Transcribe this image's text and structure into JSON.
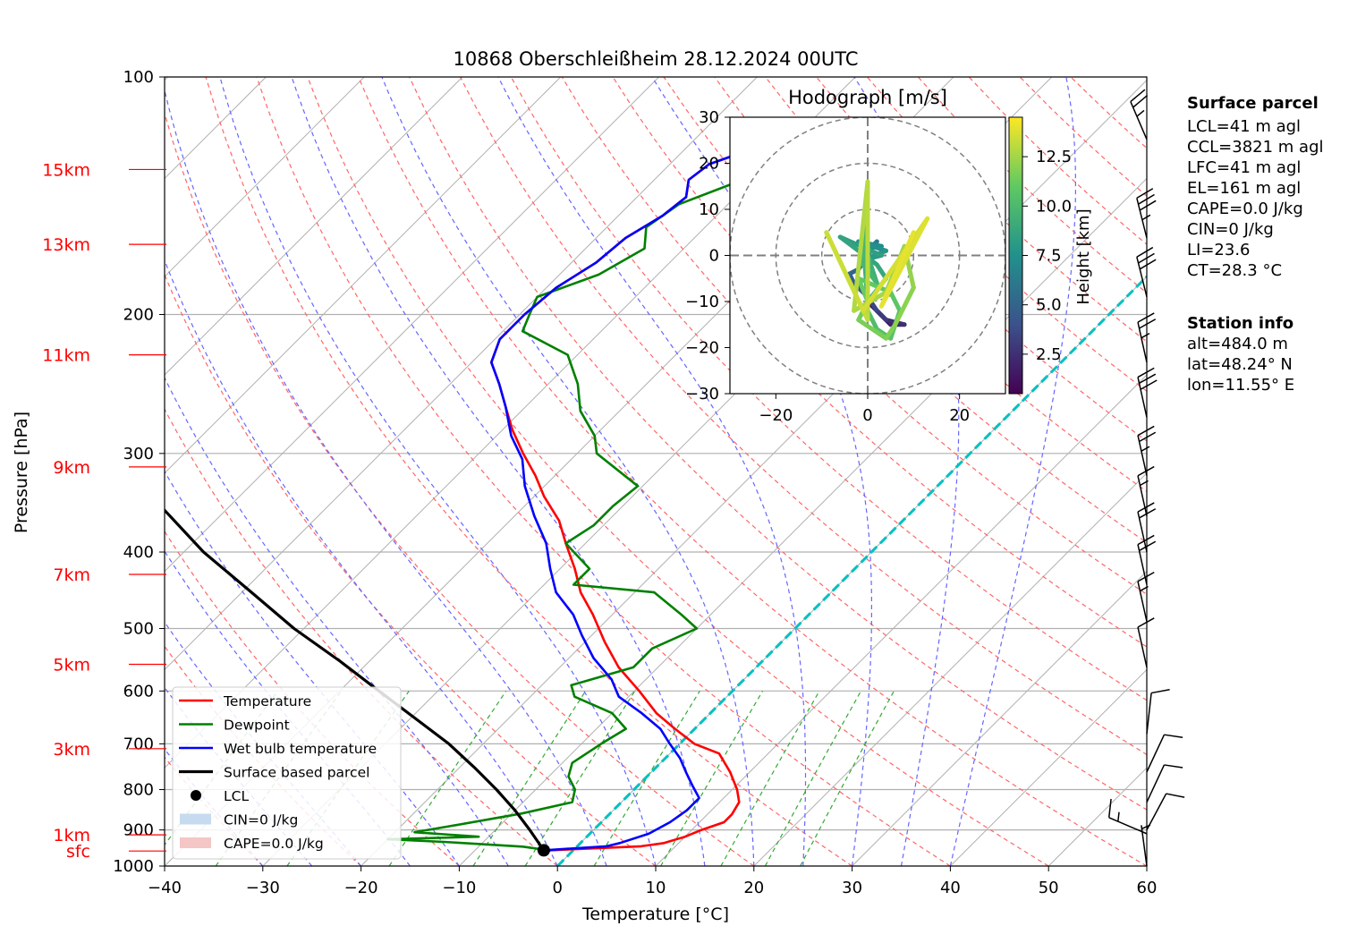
{
  "title": "10868 Oberschleißheim 28.12.2024 00UTC",
  "colors": {
    "temperature": "#ff0000",
    "dewpoint": "#008000",
    "wetbulb": "#0000ff",
    "parcel": "#000000",
    "altitude_labels": "#ff0000",
    "dry_adiabats": "#ff6666",
    "moist_adiabats": "#6666ff",
    "mixing_ratio": "#33aa33",
    "freezing_isotherm": "#00c0c0",
    "cin_fill": "#c6dbef",
    "cape_fill": "#f4c6c6"
  },
  "chart_data": {
    "type": "skew-T log-p",
    "xlabel": "Temperature [°C]",
    "ylabel": "Pressure [hPa]",
    "xlim": [
      -40,
      60
    ],
    "ylim": [
      1000,
      100
    ],
    "x_scale": "linear (skewed isotherms)",
    "y_scale": "log",
    "grid": true,
    "x_ticks": [
      "−40",
      "−30",
      "−20",
      "−10",
      "0",
      "10",
      "20",
      "30",
      "40",
      "50",
      "60"
    ],
    "y_ticks": [
      "100",
      "200",
      "300",
      "400",
      "500",
      "600",
      "700",
      "800",
      "900",
      "1000"
    ],
    "altitude_labels": [
      {
        "label": "15km",
        "p": 131
      },
      {
        "label": "13km",
        "p": 163
      },
      {
        "label": "11km",
        "p": 225
      },
      {
        "label": "9km",
        "p": 312
      },
      {
        "label": "7km",
        "p": 427
      },
      {
        "label": "5km",
        "p": 555
      },
      {
        "label": "3km",
        "p": 710
      },
      {
        "label": "1km",
        "p": 913
      },
      {
        "label": "sfc",
        "p": 957
      }
    ],
    "series": [
      {
        "name": "Temperature",
        "key": "temperature",
        "points": [
          [
            -2.5,
            955
          ],
          [
            6.5,
            944
          ],
          [
            8.5,
            935
          ],
          [
            10,
            918
          ],
          [
            11,
            900
          ],
          [
            12.5,
            880
          ],
          [
            12.5,
            860
          ],
          [
            12,
            830
          ],
          [
            10.5,
            800
          ],
          [
            8,
            760
          ],
          [
            5,
            720
          ],
          [
            1.5,
            700
          ],
          [
            -2,
            670
          ],
          [
            -5.5,
            640
          ],
          [
            -9.5,
            600
          ],
          [
            -14,
            560
          ],
          [
            -18,
            520
          ],
          [
            -22,
            480
          ],
          [
            -25.5,
            450
          ],
          [
            -28.5,
            420
          ],
          [
            -32,
            390
          ],
          [
            -35,
            365
          ],
          [
            -39,
            340
          ],
          [
            -42,
            320
          ],
          [
            -45.5,
            300
          ],
          [
            -49,
            280
          ],
          [
            -52,
            262
          ],
          [
            -55,
            245
          ],
          [
            -58,
            230
          ],
          [
            -59.5,
            215
          ],
          [
            -59.5,
            200
          ],
          [
            -59,
            185
          ],
          [
            -57.5,
            172
          ],
          [
            -57,
            160
          ],
          [
            -55.5,
            150
          ],
          [
            -55,
            142
          ],
          [
            -56.5,
            135
          ],
          [
            -56,
            129
          ],
          [
            -54.5,
            126
          ]
        ]
      },
      {
        "name": "Dewpoint",
        "key": "dewpoint",
        "points": [
          [
            -2.5,
            955
          ],
          [
            -5.5,
            945
          ],
          [
            -14,
            932
          ],
          [
            -20,
            925
          ],
          [
            -11,
            918
          ],
          [
            -18,
            906
          ],
          [
            -15,
            890
          ],
          [
            -9,
            858
          ],
          [
            -5,
            830
          ],
          [
            -6,
            800
          ],
          [
            -8,
            770
          ],
          [
            -9,
            740
          ],
          [
            -8,
            700
          ],
          [
            -7,
            670
          ],
          [
            -10,
            640
          ],
          [
            -15.5,
            610
          ],
          [
            -17,
            590
          ],
          [
            -12.5,
            560
          ],
          [
            -12.5,
            530
          ],
          [
            -10,
            500
          ],
          [
            -13,
            480
          ],
          [
            -18,
            450
          ],
          [
            -27,
            440
          ],
          [
            -27,
            420
          ],
          [
            -32,
            390
          ],
          [
            -31,
            370
          ],
          [
            -31,
            350
          ],
          [
            -30.5,
            330
          ],
          [
            -38,
            300
          ],
          [
            -40,
            285
          ],
          [
            -44,
            265
          ],
          [
            -47,
            245
          ],
          [
            -51,
            225
          ],
          [
            -58,
            210
          ],
          [
            -59,
            200
          ],
          [
            -60,
            190
          ],
          [
            -56,
            178
          ],
          [
            -54,
            165
          ],
          [
            -56,
            155
          ],
          [
            -55,
            145
          ],
          [
            -51,
            135
          ],
          [
            -49,
            128
          ]
        ]
      },
      {
        "name": "Wet bulb temperature",
        "key": "wetbulb",
        "points": [
          [
            -3,
            955
          ],
          [
            3,
            944
          ],
          [
            4,
            935
          ],
          [
            6,
            910
          ],
          [
            7,
            880
          ],
          [
            7.5,
            850
          ],
          [
            7.5,
            820
          ],
          [
            5.5,
            790
          ],
          [
            3.5,
            760
          ],
          [
            1.5,
            730
          ],
          [
            -1,
            700
          ],
          [
            -3.5,
            670
          ],
          [
            -7,
            640
          ],
          [
            -11,
            610
          ],
          [
            -13.5,
            580
          ],
          [
            -17.5,
            545
          ],
          [
            -21,
            510
          ],
          [
            -24,
            480
          ],
          [
            -28,
            450
          ],
          [
            -31,
            420
          ],
          [
            -34,
            390
          ],
          [
            -38,
            360
          ],
          [
            -42,
            330
          ],
          [
            -45,
            305
          ],
          [
            -48.5,
            285
          ],
          [
            -52,
            262
          ],
          [
            -55,
            245
          ],
          [
            -58,
            230
          ],
          [
            -59.5,
            215
          ],
          [
            -59.5,
            200
          ],
          [
            -59,
            185
          ],
          [
            -57.5,
            172
          ],
          [
            -57,
            160
          ],
          [
            -55.5,
            150
          ],
          [
            -55,
            142
          ],
          [
            -56.5,
            135
          ],
          [
            -56,
            129
          ],
          [
            -54.5,
            126
          ]
        ]
      },
      {
        "name": "Surface based parcel",
        "key": "parcel",
        "points": [
          [
            -3,
            955
          ],
          [
            -6.5,
            900
          ],
          [
            -10,
            850
          ],
          [
            -14,
            800
          ],
          [
            -18.5,
            750
          ],
          [
            -23.5,
            700
          ],
          [
            -29.5,
            650
          ],
          [
            -36,
            600
          ],
          [
            -43,
            550
          ],
          [
            -51,
            500
          ],
          [
            -59,
            450
          ],
          [
            -68,
            400
          ],
          [
            -77,
            350
          ],
          [
            -87,
            300
          ]
        ]
      }
    ],
    "lcl": {
      "name": "LCL",
      "t": -3,
      "p": 955
    },
    "legend": [
      {
        "label": "Temperature",
        "key": "temperature"
      },
      {
        "label": "Dewpoint",
        "key": "dewpoint"
      },
      {
        "label": "Wet bulb temperature",
        "key": "wetbulb"
      },
      {
        "label": "Surface based parcel",
        "key": "parcel"
      },
      {
        "label": "LCL",
        "key": "lcl"
      },
      {
        "label": "CIN=0 J/kg",
        "key": "cin"
      },
      {
        "label": "CAPE=0.0 J/kg",
        "key": "cape"
      }
    ],
    "legend_location": "lower-left",
    "barbs_location": "right",
    "wind_barbs": [
      {
        "p": 120,
        "u": -6,
        "v": 14,
        "speed_kt": 25
      },
      {
        "p": 160,
        "u": -5,
        "v": 20,
        "speed_kt": 35
      },
      {
        "p": 190,
        "u": -5,
        "v": 20,
        "speed_kt": 30
      },
      {
        "p": 230,
        "u": -4,
        "v": 18,
        "speed_kt": 25
      },
      {
        "p": 270,
        "u": -4,
        "v": 18,
        "speed_kt": 30
      },
      {
        "p": 320,
        "u": -4,
        "v": 18,
        "speed_kt": 25
      },
      {
        "p": 360,
        "u": -4,
        "v": 18,
        "speed_kt": 15
      },
      {
        "p": 400,
        "u": -4,
        "v": 18,
        "speed_kt": 20
      },
      {
        "p": 440,
        "u": -4,
        "v": 18,
        "speed_kt": 20
      },
      {
        "p": 490,
        "u": -4,
        "v": 18,
        "speed_kt": 15
      },
      {
        "p": 560,
        "u": -4,
        "v": 18,
        "speed_kt": 10
      },
      {
        "p": 680,
        "u": 2,
        "v": 18,
        "speed_kt": 10
      },
      {
        "p": 760,
        "u": 7,
        "v": 15,
        "speed_kt": 10
      },
      {
        "p": 830,
        "u": 7,
        "v": 15,
        "speed_kt": 10
      },
      {
        "p": 900,
        "u": 8,
        "v": 15,
        "speed_kt": 10
      },
      {
        "p": 910,
        "u": -14,
        "v": 6,
        "speed_kt": 15
      },
      {
        "p": 1000,
        "u": -2,
        "v": 15,
        "speed_kt": 5
      }
    ],
    "hodograph": {
      "title": "Hodograph [m/s]",
      "xlim": [
        -30,
        30
      ],
      "ylim": [
        -30,
        30
      ],
      "x_ticks": [
        "−20",
        "0",
        "20"
      ],
      "y_ticks": [
        "30",
        "20",
        "10",
        "0",
        "−10",
        "−20",
        "−30"
      ],
      "rings": [
        10,
        20,
        30
      ],
      "colorbar_label": "Height [km]",
      "colorbar_ticks": [
        "2.5",
        "5.0",
        "7.5",
        "10.0",
        "12.5"
      ],
      "colorbar_range": [
        0.5,
        14.5
      ],
      "points": [
        [
          0,
          -10,
          0.5
        ],
        [
          1,
          -11,
          1.0
        ],
        [
          3,
          -13,
          1.5
        ],
        [
          5,
          -15,
          2.0
        ],
        [
          8,
          -15,
          2.5
        ],
        [
          4,
          -14,
          3.0
        ],
        [
          2,
          -12,
          3.5
        ],
        [
          0,
          -9,
          4.0
        ],
        [
          -3,
          -6,
          4.5
        ],
        [
          -4,
          -4,
          5.0
        ],
        [
          -2,
          -3,
          5.5
        ],
        [
          0,
          0,
          6.0
        ],
        [
          2,
          3,
          6.2
        ],
        [
          0,
          1,
          6.5
        ],
        [
          -2,
          3,
          6.8
        ],
        [
          0,
          2,
          7.0
        ],
        [
          3,
          2,
          7.2
        ],
        [
          -2,
          3,
          7.5
        ],
        [
          4,
          1,
          7.8
        ],
        [
          -1,
          -1,
          8.0
        ],
        [
          3,
          0,
          8.3
        ],
        [
          -6,
          4,
          8.6
        ],
        [
          2,
          -2,
          8.8
        ],
        [
          4,
          -5,
          9.0
        ],
        [
          0,
          -10,
          9.2
        ],
        [
          -1,
          3,
          9.4
        ],
        [
          2,
          -6,
          9.6
        ],
        [
          -1,
          -2,
          9.8
        ],
        [
          0,
          15,
          10.0
        ],
        [
          0,
          -12,
          10.2
        ],
        [
          2,
          -16,
          10.4
        ],
        [
          5,
          -18,
          10.6
        ],
        [
          7,
          -12,
          10.8
        ],
        [
          5,
          -8,
          11.0
        ],
        [
          -2,
          -5,
          11.2
        ],
        [
          0,
          -10,
          11.4
        ],
        [
          -2,
          -14,
          11.6
        ],
        [
          4,
          -18,
          11.8
        ],
        [
          6,
          -15,
          12.0
        ],
        [
          10,
          -7,
          12.2
        ],
        [
          8,
          2,
          12.4
        ],
        [
          4,
          -8,
          12.6
        ],
        [
          -3,
          -12,
          12.8
        ],
        [
          0,
          16,
          13.0
        ],
        [
          0,
          -14,
          13.2
        ],
        [
          -9,
          5,
          13.4
        ],
        [
          -1,
          -12,
          13.6
        ],
        [
          13,
          8,
          13.8
        ],
        [
          3,
          -11,
          14.0
        ],
        [
          10,
          5,
          14.2
        ]
      ]
    },
    "surface_parcel": {
      "heading": "Surface parcel",
      "lines": [
        "LCL=41 m agl",
        "CCL=3821 m agl",
        "LFC=41 m agl",
        "EL=161 m agl",
        "CAPE=0.0 J/kg",
        "CIN=0 J/kg",
        "LI=23.6",
        "CT=28.3 °C"
      ]
    },
    "station_info": {
      "heading": "Station info",
      "lines": [
        "alt=484.0 m",
        "lat=48.24° N",
        "lon=11.55° E"
      ]
    }
  }
}
